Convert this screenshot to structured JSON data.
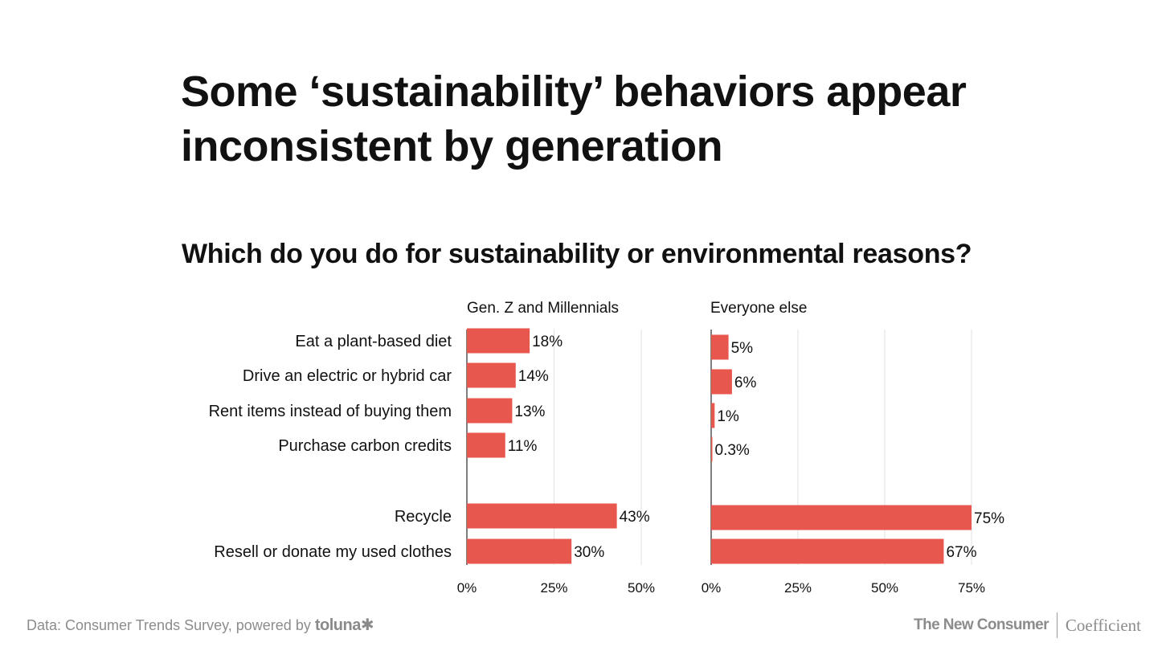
{
  "title": "Some ‘sustainability’ behaviors appear inconsistent by generation",
  "subtitle": "Which do you do for sustainability or environmental reasons?",
  "colors": {
    "bar": "#e8574d",
    "grid": "#e2e2e2",
    "axis": "#555555",
    "text": "#111111",
    "muted": "#8c8c8c"
  },
  "chart_data": [
    {
      "type": "bar",
      "orientation": "horizontal",
      "panel_title": "Gen. Z and Millennials",
      "categories": [
        "Eat a plant-based diet",
        "Drive an electric or hybrid car",
        "Rent items instead of buying them",
        "Purchase carbon credits",
        "Recycle",
        "Resell or donate my used clothes"
      ],
      "values": [
        18,
        14,
        13,
        11,
        43,
        30
      ],
      "value_labels": [
        "18%",
        "14%",
        "13%",
        "11%",
        "43%",
        "30%"
      ],
      "xlim": [
        0,
        50
      ],
      "xticks": [
        0,
        25,
        50
      ],
      "xtick_labels": [
        "0%",
        "25%",
        "50%"
      ],
      "grid": true
    },
    {
      "type": "bar",
      "orientation": "horizontal",
      "panel_title": "Everyone else",
      "categories": [
        "Eat a plant-based diet",
        "Drive an electric or hybrid car",
        "Rent items instead of buying them",
        "Purchase carbon credits",
        "Recycle",
        "Resell or donate my used clothes"
      ],
      "values": [
        5,
        6,
        1,
        0.3,
        75,
        67
      ],
      "value_labels": [
        "5%",
        "6%",
        "1%",
        "0.3%",
        "75%",
        "67%"
      ],
      "xlim": [
        0,
        75
      ],
      "xticks": [
        0,
        25,
        50,
        75
      ],
      "xtick_labels": [
        "0%",
        "25%",
        "50%",
        "75%"
      ],
      "grid": true
    }
  ],
  "footer": {
    "source_text": "Data: Consumer Trends Survey, powered by",
    "source_brand": "toluna✱",
    "brand_primary": "The New Consumer",
    "brand_secondary": "Coefficient"
  }
}
